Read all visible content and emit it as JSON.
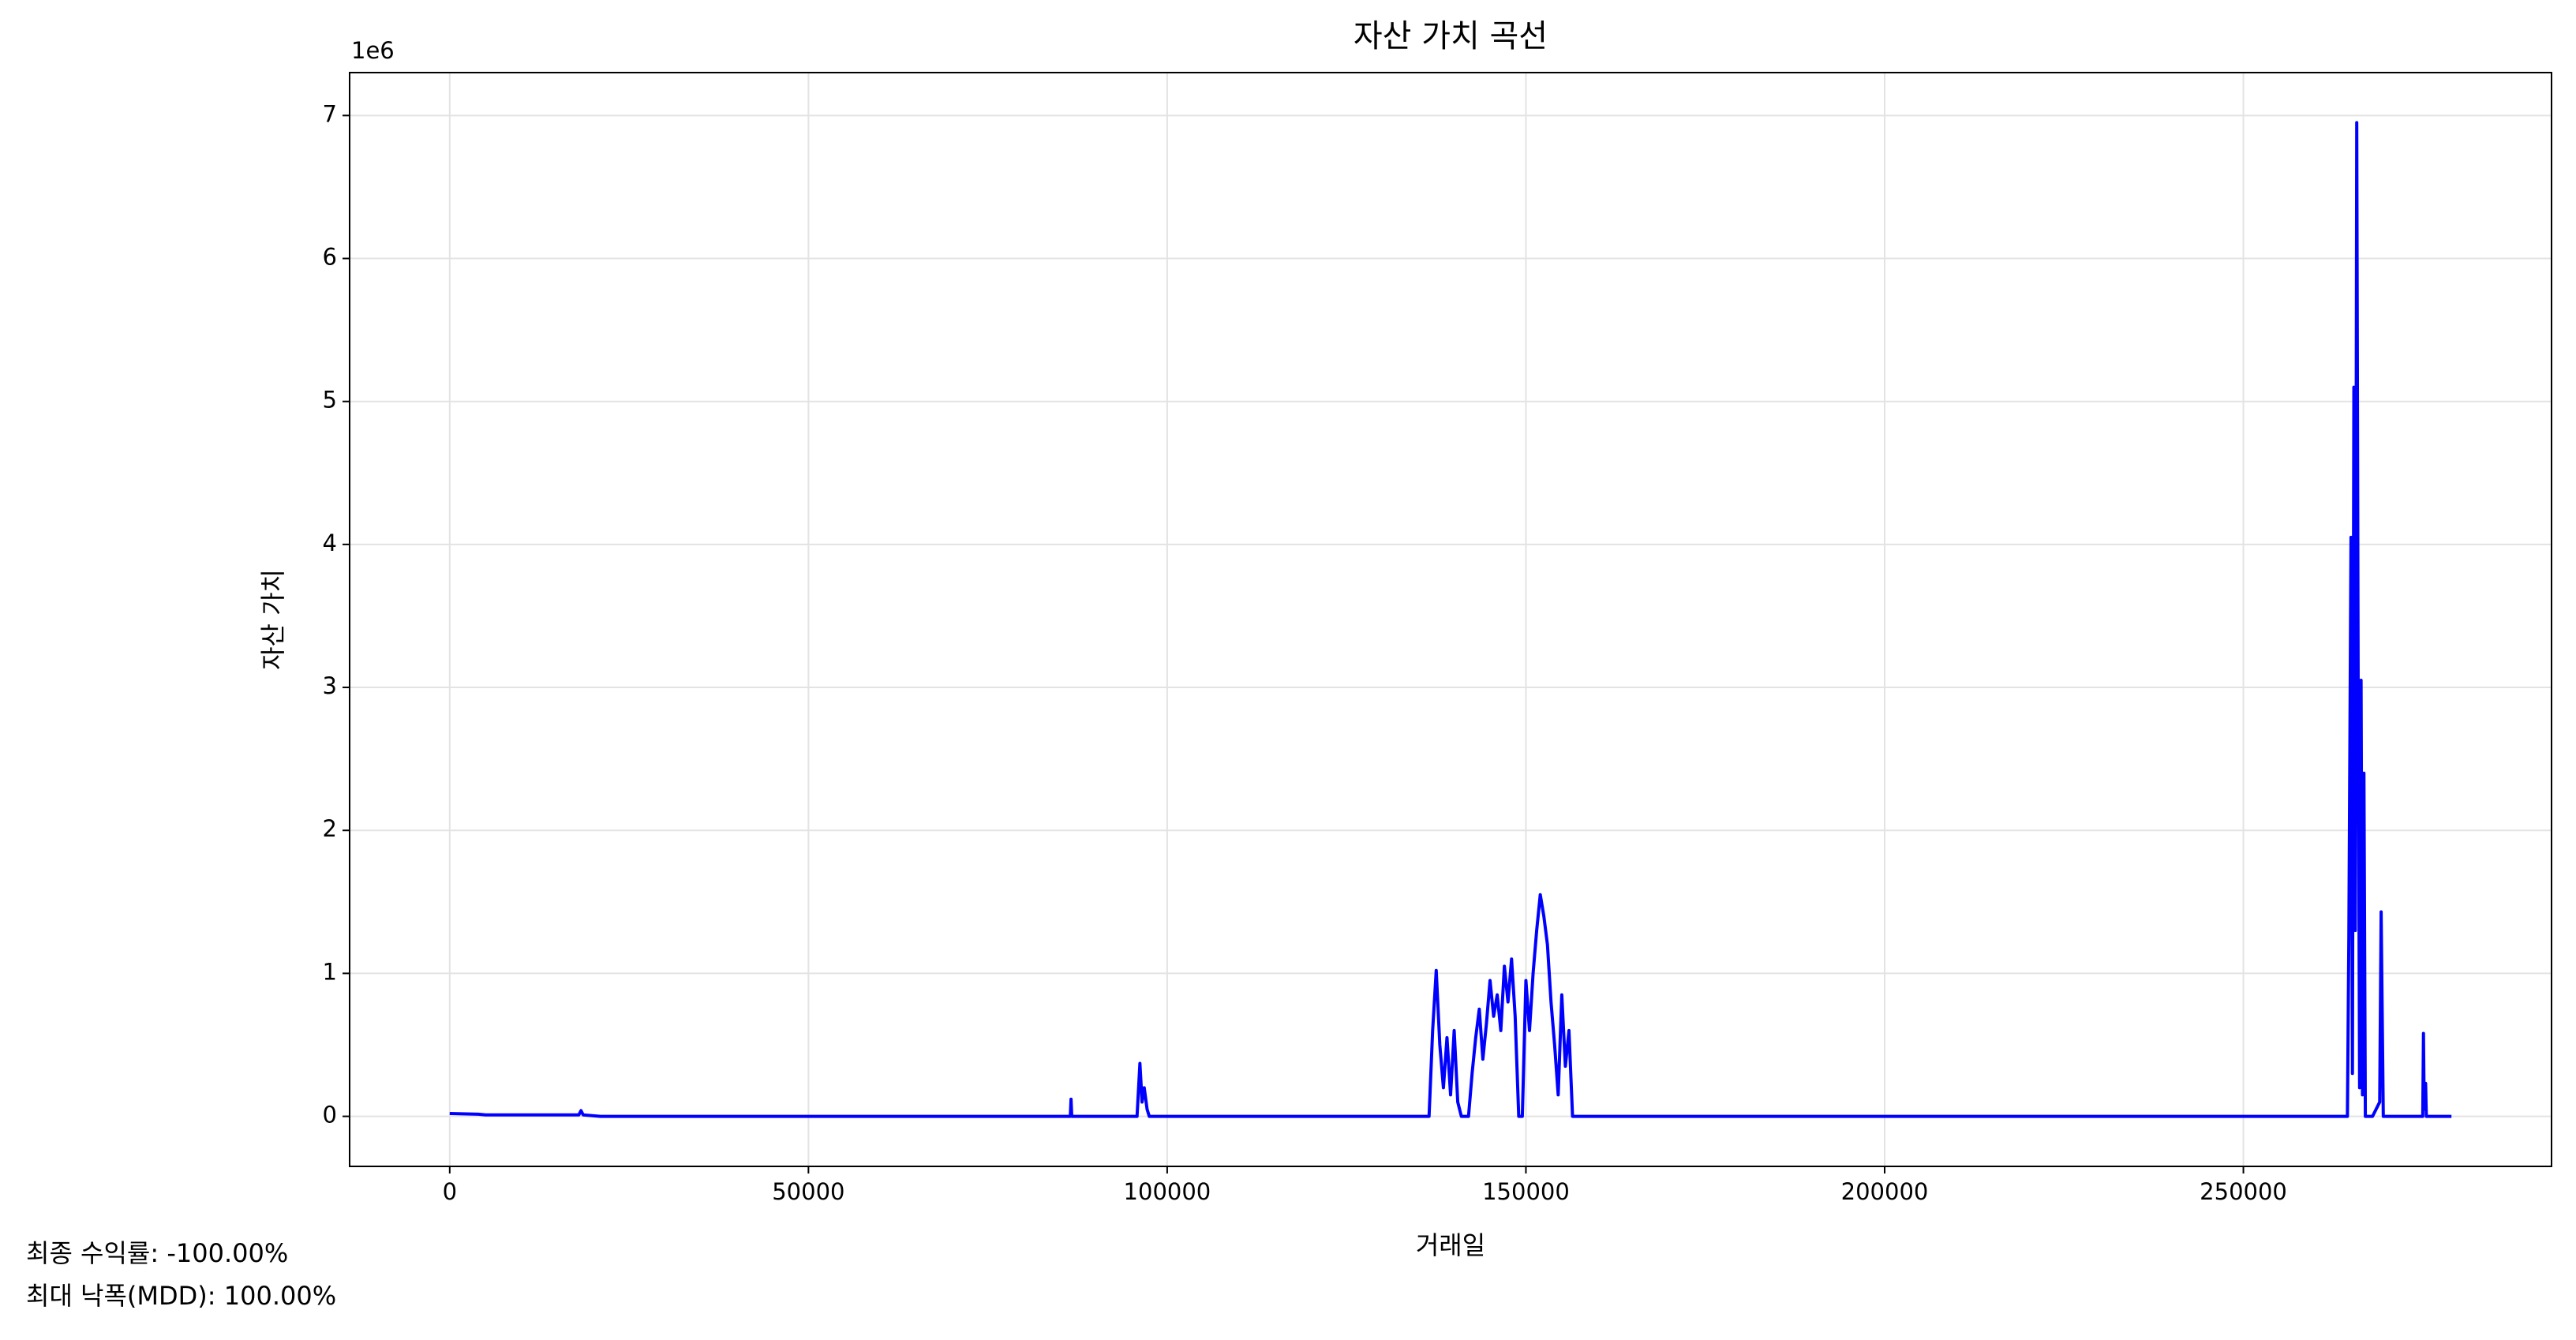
{
  "chart_data": {
    "type": "line",
    "title": "자산 가치 곡선",
    "x_label": "거래일",
    "y_label": "자산 가치",
    "y_offset_label": "1e6",
    "annotations": [
      "최종 수익률: -100.00%",
      "최대 낙폭(MDD): 100.00%"
    ],
    "x": [
      0,
      4000,
      5000,
      18000,
      18300,
      18600,
      21000,
      86500,
      86600,
      86700,
      95800,
      96200,
      96500,
      96800,
      97200,
      97500,
      136500,
      137000,
      137500,
      138000,
      138500,
      139000,
      139500,
      140000,
      140500,
      141000,
      142000,
      142500,
      143000,
      143500,
      144000,
      144500,
      145000,
      145500,
      146000,
      146500,
      147000,
      147500,
      148000,
      148500,
      149000,
      149500,
      150000,
      150500,
      151000,
      151500,
      152000,
      152500,
      153000,
      153500,
      154000,
      154500,
      155000,
      155500,
      156000,
      156500,
      264500,
      264700,
      265000,
      265200,
      265400,
      265600,
      265800,
      266000,
      266200,
      266400,
      266600,
      266800,
      267000,
      268000,
      269000,
      269200,
      269500,
      275000,
      275100,
      275200,
      275400,
      275500,
      279000
    ],
    "series": [
      {
        "name": "자산 가치",
        "color": "#0000ff",
        "values": [
          0.02,
          0.015,
          0.01,
          0.01,
          0.04,
          0.01,
          0,
          0,
          0.12,
          0,
          0,
          0.37,
          0.1,
          0.2,
          0.05,
          0,
          0,
          0.6,
          1.02,
          0.5,
          0.2,
          0.55,
          0.15,
          0.6,
          0.1,
          0,
          0,
          0.3,
          0.55,
          0.75,
          0.4,
          0.65,
          0.95,
          0.7,
          0.85,
          0.6,
          1.05,
          0.8,
          1.1,
          0.7,
          0,
          0,
          0.95,
          0.6,
          1.0,
          1.3,
          1.55,
          1.4,
          1.2,
          0.8,
          0.5,
          0.15,
          0.85,
          0.35,
          0.6,
          0,
          0,
          1.25,
          4.05,
          0.3,
          5.1,
          1.3,
          6.95,
          3.0,
          0.2,
          3.05,
          0.15,
          2.4,
          0,
          0,
          0.1,
          1.43,
          0,
          0,
          0.58,
          0.05,
          0.23,
          0,
          0
        ]
      }
    ],
    "xlim": [
      -13950,
      292950
    ],
    "ylim": [
      -0.35,
      7.3
    ],
    "xticks": [
      0,
      50000,
      100000,
      150000,
      200000,
      250000
    ],
    "yticks": [
      0,
      1,
      2,
      3,
      4,
      5,
      6,
      7
    ],
    "grid": true
  }
}
